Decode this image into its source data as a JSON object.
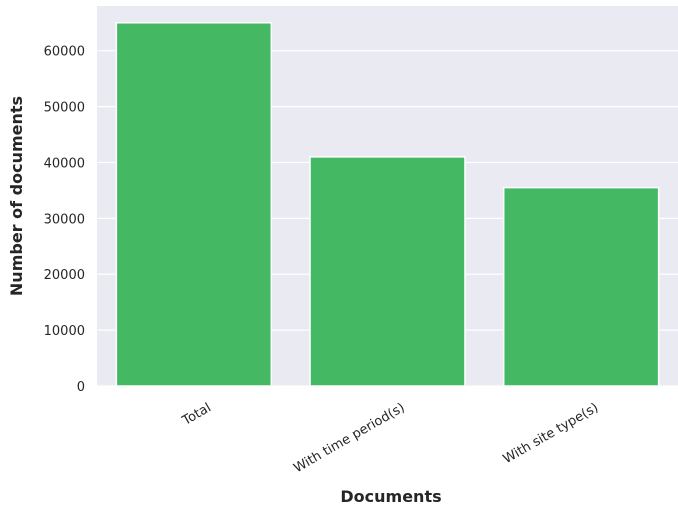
{
  "chart_data": {
    "type": "bar",
    "title": "",
    "xlabel": "Documents",
    "ylabel": "Number of documents",
    "categories": [
      "Total",
      "With time period(s)",
      "With site type(s)"
    ],
    "values": [
      65000,
      41000,
      35500
    ],
    "ylim": [
      0,
      68000
    ],
    "yticks": [
      0,
      10000,
      20000,
      30000,
      40000,
      50000,
      60000
    ],
    "grid": true,
    "legend": "none",
    "colors": {
      "bar": "#45b864",
      "background": "#eaeaf2",
      "grid": "#ffffff"
    }
  }
}
